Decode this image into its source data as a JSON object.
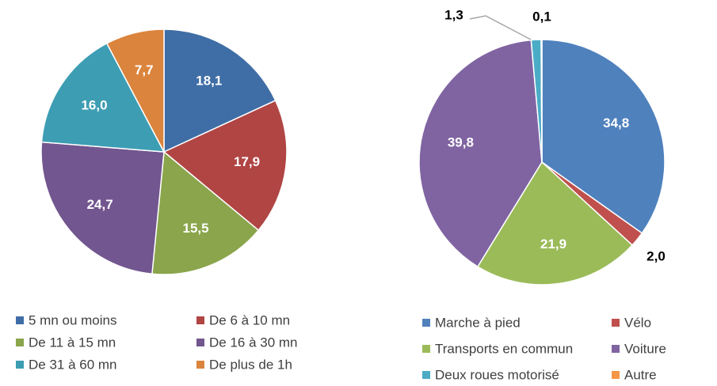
{
  "chart_data": [
    {
      "type": "pie",
      "categories": [
        "5 mn ou moins",
        "De 6 à 10 mn",
        "De 11 à 15 mn",
        "De 16 à 30 mn",
        "De 31 à 60 mn",
        "De plus de 1h"
      ],
      "values": [
        18.1,
        17.9,
        15.5,
        24.7,
        16.0,
        7.7
      ],
      "value_labels": [
        "18,1",
        "17,9",
        "15,5",
        "24,7",
        "16,0",
        "7,7"
      ],
      "colors": [
        "#3f6ea6",
        "#b04544",
        "#8aa54b",
        "#72568f",
        "#3d9db3",
        "#db843d"
      ]
    },
    {
      "type": "pie",
      "categories": [
        "Marche à pied",
        "Vélo",
        "Transports en commun",
        "Voiture",
        "Deux roues motorisé",
        "Autre"
      ],
      "values": [
        34.8,
        2.0,
        21.9,
        39.8,
        1.3,
        0.1
      ],
      "value_labels": [
        "34,8",
        "2,0",
        "21,9",
        "39,8",
        "1,3",
        "0,1"
      ],
      "colors": [
        "#4f81bd",
        "#c0504d",
        "#9bbb59",
        "#8064a2",
        "#4bacc6",
        "#f79646"
      ]
    }
  ]
}
